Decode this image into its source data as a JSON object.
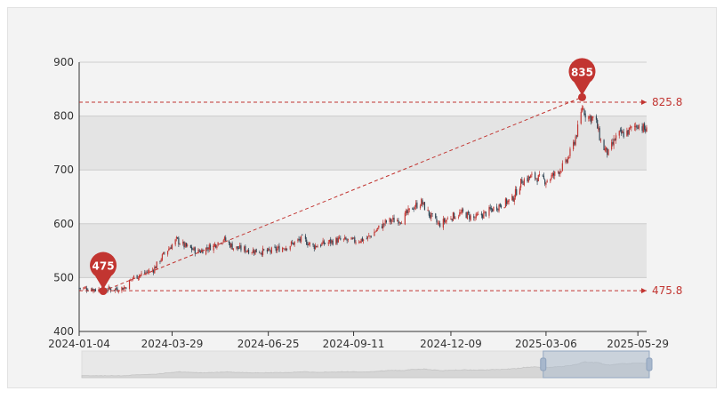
{
  "chart_data": {
    "type": "candlestick",
    "x_tick_labels": [
      "2024-01-04",
      "2024-03-29",
      "2024-06-25",
      "2024-09-11",
      "2024-12-09",
      "2025-03-06",
      "2025-05-29"
    ],
    "y_tick_labels": [
      "400",
      "500",
      "600",
      "700",
      "800",
      "900"
    ],
    "ylim": [
      400,
      900
    ],
    "xlim": [
      "2024-01-04",
      "2025-06-06"
    ],
    "grid": true,
    "split_areas": true,
    "colors": {
      "up": "#c23531",
      "down": "#2f4554",
      "markline": "#c23531",
      "markpoint": "#c23531",
      "bg": "#f3f3f3"
    },
    "markpoints": [
      {
        "label": "475",
        "date": "2024-01-26",
        "value": 475
      },
      {
        "label": "835",
        "date": "2025-04-08",
        "value": 835
      }
    ],
    "marklines": [
      {
        "label": "825.8",
        "value": 825.8,
        "style": "dashed"
      },
      {
        "label": "475.8",
        "value": 475.8,
        "style": "dashed"
      }
    ],
    "trend_line": {
      "from": {
        "date": "2024-01-26",
        "value": 475
      },
      "to": {
        "date": "2025-04-08",
        "value": 835
      },
      "style": "dashed"
    },
    "trend_keypoints": [
      [
        "2024-01-04",
        481
      ],
      [
        "2024-01-20",
        478
      ],
      [
        "2024-02-08",
        479
      ],
      [
        "2024-02-15",
        482
      ],
      [
        "2024-02-22",
        500
      ],
      [
        "2024-03-01",
        506
      ],
      [
        "2024-03-12",
        515
      ],
      [
        "2024-03-22",
        545
      ],
      [
        "2024-04-02",
        570
      ],
      [
        "2024-04-10",
        558
      ],
      [
        "2024-04-22",
        548
      ],
      [
        "2024-05-06",
        560
      ],
      [
        "2024-05-15",
        572
      ],
      [
        "2024-05-24",
        556
      ],
      [
        "2024-06-10",
        550
      ],
      [
        "2024-06-25",
        548
      ],
      [
        "2024-07-12",
        558
      ],
      [
        "2024-07-26",
        572
      ],
      [
        "2024-08-05",
        558
      ],
      [
        "2024-08-18",
        565
      ],
      [
        "2024-08-28",
        570
      ],
      [
        "2024-09-11",
        568
      ],
      [
        "2024-09-23",
        572
      ],
      [
        "2024-10-04",
        592
      ],
      [
        "2024-10-12",
        605
      ],
      [
        "2024-10-25",
        608
      ],
      [
        "2024-11-04",
        630
      ],
      [
        "2024-11-12",
        640
      ],
      [
        "2024-11-20",
        615
      ],
      [
        "2024-11-28",
        598
      ],
      [
        "2024-12-09",
        613
      ],
      [
        "2024-12-20",
        620
      ],
      [
        "2024-12-30",
        610
      ],
      [
        "2025-01-10",
        620
      ],
      [
        "2025-01-20",
        632
      ],
      [
        "2025-02-03",
        645
      ],
      [
        "2025-02-12",
        680
      ],
      [
        "2025-02-22",
        688
      ],
      [
        "2025-03-06",
        680
      ],
      [
        "2025-03-16",
        695
      ],
      [
        "2025-03-24",
        712
      ],
      [
        "2025-03-30",
        740
      ],
      [
        "2025-04-06",
        790
      ],
      [
        "2025-04-08",
        818
      ],
      [
        "2025-04-12",
        800
      ],
      [
        "2025-04-20",
        795
      ],
      [
        "2025-04-26",
        745
      ],
      [
        "2025-05-02",
        730
      ],
      [
        "2025-05-10",
        765
      ],
      [
        "2025-05-18",
        768
      ],
      [
        "2025-05-29",
        785
      ],
      [
        "2025-06-06",
        772
      ]
    ],
    "data_zoom": {
      "start_date": "2025-03-01",
      "end_date": "2025-06-06"
    }
  }
}
